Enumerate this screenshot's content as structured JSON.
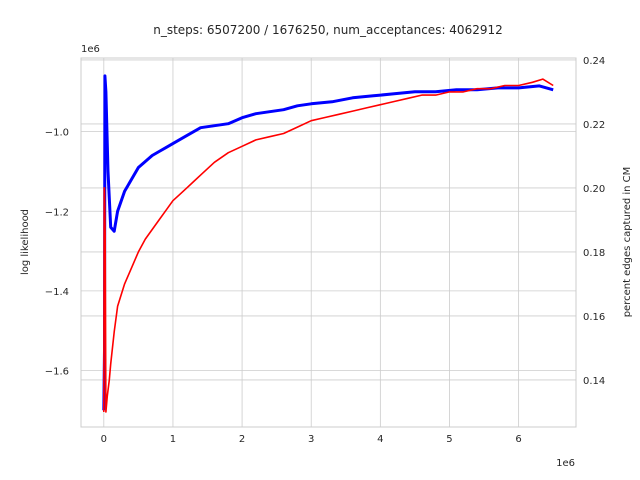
{
  "chart_data": {
    "type": "line",
    "title": "n_steps: 6507200 / 1676250, num_acceptances: 4062912",
    "grid": true,
    "x": {
      "label": "",
      "offset_text": "1e6",
      "ticks": [
        0,
        1,
        2,
        3,
        4,
        5,
        6
      ],
      "tick_labels": [
        "0",
        "1",
        "2",
        "3",
        "4",
        "5",
        "6"
      ],
      "lim": [
        -0.33,
        6.83
      ]
    },
    "y_left": {
      "label": "log likelihood",
      "offset_text": "1e6",
      "ticks": [
        -1.6,
        -1.4,
        -1.2,
        -1.0
      ],
      "tick_labels": [
        "−1.6",
        "−1.4",
        "−1.2",
        "−1.0"
      ],
      "lim": [
        -1.742,
        -0.815
      ]
    },
    "y_right": {
      "label": "percent edges captured in CM",
      "ticks": [
        0.14,
        0.16,
        0.18,
        0.2,
        0.22,
        0.24
      ],
      "tick_labels": [
        "0.14",
        "0.16",
        "0.18",
        "0.20",
        "0.22",
        "0.24"
      ],
      "lim": [
        0.1253,
        0.2406
      ]
    },
    "series": [
      {
        "axis": "left",
        "color": "#0000ff",
        "x": [
          0,
          0.01,
          0.015,
          0.03,
          0.06,
          0.1,
          0.15,
          0.2,
          0.3,
          0.4,
          0.5,
          0.6,
          0.7,
          0.8,
          0.9,
          1.0,
          1.2,
          1.4,
          1.6,
          1.8,
          2.0,
          2.2,
          2.4,
          2.6,
          2.8,
          3.0,
          3.3,
          3.6,
          3.9,
          4.2,
          4.5,
          4.8,
          5.1,
          5.4,
          5.7,
          6.0,
          6.3,
          6.5
        ],
        "values": [
          -1.7,
          -1.55,
          -0.86,
          -0.9,
          -1.1,
          -1.24,
          -1.25,
          -1.2,
          -1.15,
          -1.12,
          -1.09,
          -1.075,
          -1.06,
          -1.05,
          -1.04,
          -1.03,
          -1.01,
          -0.99,
          -0.985,
          -0.98,
          -0.965,
          -0.955,
          -0.95,
          -0.945,
          -0.935,
          -0.93,
          -0.925,
          -0.915,
          -0.91,
          -0.905,
          -0.9,
          -0.9,
          -0.895,
          -0.895,
          -0.89,
          -0.89,
          -0.885,
          -0.895
        ]
      },
      {
        "axis": "right",
        "color": "#ff0000",
        "x": [
          0,
          0.005,
          0.01,
          0.02,
          0.03,
          0.05,
          0.08,
          0.1,
          0.15,
          0.2,
          0.3,
          0.4,
          0.5,
          0.6,
          0.7,
          0.8,
          0.9,
          1.0,
          1.1,
          1.2,
          1.3,
          1.4,
          1.5,
          1.6,
          1.8,
          2.0,
          2.2,
          2.4,
          2.6,
          2.8,
          3.0,
          3.2,
          3.4,
          3.6,
          3.8,
          4.0,
          4.2,
          4.4,
          4.6,
          4.8,
          5.0,
          5.2,
          5.4,
          5.6,
          5.8,
          6.0,
          6.2,
          6.35,
          6.5
        ],
        "values": [
          0.13,
          0.2,
          0.2,
          0.185,
          0.13,
          0.135,
          0.14,
          0.145,
          0.155,
          0.163,
          0.17,
          0.175,
          0.18,
          0.184,
          0.187,
          0.19,
          0.193,
          0.196,
          0.198,
          0.2,
          0.202,
          0.204,
          0.206,
          0.208,
          0.211,
          0.213,
          0.215,
          0.216,
          0.217,
          0.219,
          0.221,
          0.222,
          0.223,
          0.224,
          0.225,
          0.226,
          0.227,
          0.228,
          0.229,
          0.229,
          0.23,
          0.23,
          0.231,
          0.231,
          0.232,
          0.232,
          0.233,
          0.234,
          0.232
        ]
      }
    ]
  }
}
